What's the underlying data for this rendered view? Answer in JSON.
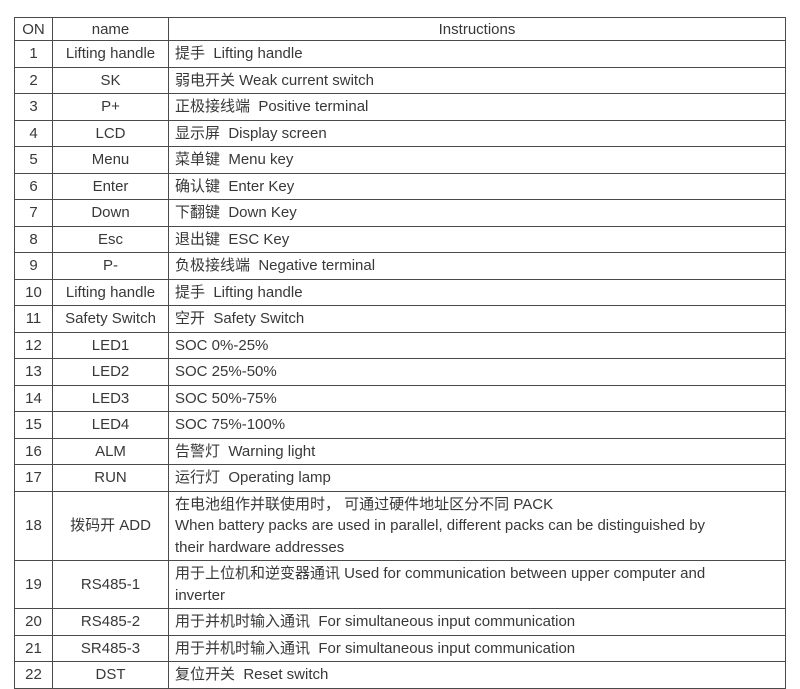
{
  "colors": {
    "border": "#4a4a4a",
    "text": "#383838",
    "background": "#ffffff"
  },
  "table": {
    "headers": {
      "on": "ON",
      "name": "name",
      "instructions": "Instructions"
    },
    "rows": [
      {
        "on": "1",
        "name": "Lifting handle",
        "instructions": "提手  Lifting handle"
      },
      {
        "on": "2",
        "name": "SK",
        "instructions": "弱电开关 Weak current switch"
      },
      {
        "on": "3",
        "name": "P+",
        "instructions": "正极接线端  Positive terminal"
      },
      {
        "on": "4",
        "name": "LCD",
        "instructions": "显示屏  Display screen"
      },
      {
        "on": "5",
        "name": "Menu",
        "instructions": "菜单键  Menu key"
      },
      {
        "on": "6",
        "name": "Enter",
        "instructions": "确认键  Enter Key"
      },
      {
        "on": "7",
        "name": "Down",
        "instructions": "下翻键  Down Key"
      },
      {
        "on": "8",
        "name": "Esc",
        "instructions": "退出键  ESC Key"
      },
      {
        "on": "9",
        "name": "P-",
        "instructions": "负极接线端  Negative terminal"
      },
      {
        "on": "10",
        "name": "Lifting handle",
        "instructions": "提手  Lifting handle"
      },
      {
        "on": "11",
        "name": "Safety Switch",
        "instructions": "空开  Safety Switch"
      },
      {
        "on": "12",
        "name": "LED1",
        "instructions": "SOC 0%-25%"
      },
      {
        "on": "13",
        "name": "LED2",
        "instructions": "SOC 25%-50%"
      },
      {
        "on": "14",
        "name": "LED3",
        "instructions": "SOC 50%-75%"
      },
      {
        "on": "15",
        "name": "LED4",
        "instructions": "SOC 75%-100%"
      },
      {
        "on": "16",
        "name": "ALM",
        "instructions": "告警灯  Warning light"
      },
      {
        "on": "17",
        "name": "RUN",
        "instructions": "运行灯  Operating lamp"
      },
      {
        "on": "18",
        "name": "拨码开 ADD",
        "instructions": "在电池组作并联使用时， 可通过硬件地址区分不同 PACK\nWhen battery packs are used in parallel, different packs can be distinguished by\ntheir hardware addresses"
      },
      {
        "on": "19",
        "name": "RS485-1",
        "instructions": "用于上位机和逆变器通讯 Used for communication between upper computer and\ninverter"
      },
      {
        "on": "20",
        "name": "RS485-2",
        "instructions": "用于并机时输入通讯  For simultaneous input communication"
      },
      {
        "on": "21",
        "name": "SR485-3",
        "instructions": "用于并机时输入通讯  For simultaneous input communication"
      },
      {
        "on": "22",
        "name": "DST",
        "instructions": "复位开关  Reset switch"
      }
    ]
  }
}
